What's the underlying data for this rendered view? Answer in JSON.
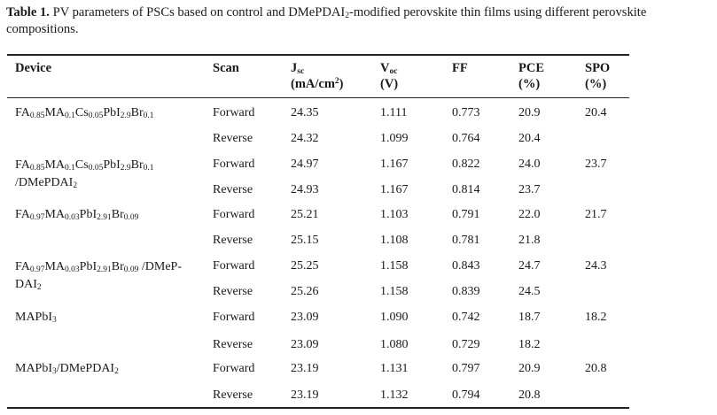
{
  "caption": {
    "label": "Table 1.",
    "line1": "PV parameters of PSCs based on control and DMePDAI",
    "line1_sub": "2",
    "line1_end": "-modified perovskite thin films using different perovskite",
    "line2": "compositions."
  },
  "headers": {
    "device": "Device",
    "scan": "Scan",
    "jsc_sym": "J",
    "jsc_sub": "sc",
    "jsc_unit": "(mA/cm",
    "jsc_unit_sup": "2",
    "jsc_unit_end": ")",
    "voc_sym": "V",
    "voc_sub": "oc",
    "voc_unit": "(V)",
    "ff": "FF",
    "pce": "PCE",
    "pce_unit": "(%)",
    "spo": "SPO",
    "spo_unit": "(%)"
  },
  "rows": [
    {
      "scan": "Forward",
      "jsc": "24.35",
      "voc": "1.111",
      "ff": "0.773",
      "pce": "20.9",
      "spo": "20.4"
    },
    {
      "scan": "Reverse",
      "jsc": "24.32",
      "voc": "1.099",
      "ff": "0.764",
      "pce": "20.4",
      "spo": ""
    },
    {
      "scan": "Forward",
      "jsc": "24.97",
      "voc": "1.167",
      "ff": "0.822",
      "pce": "24.0",
      "spo": "23.7"
    },
    {
      "scan": "Reverse",
      "jsc": "24.93",
      "voc": "1.167",
      "ff": "0.814",
      "pce": "23.7",
      "spo": ""
    },
    {
      "scan": "Forward",
      "jsc": "25.21",
      "voc": "1.103",
      "ff": "0.791",
      "pce": "22.0",
      "spo": "21.7"
    },
    {
      "scan": "Reverse",
      "jsc": "25.15",
      "voc": "1.108",
      "ff": "0.781",
      "pce": "21.8",
      "spo": ""
    },
    {
      "scan": "Forward",
      "jsc": "25.25",
      "voc": "1.158",
      "ff": "0.843",
      "pce": "24.7",
      "spo": "24.3"
    },
    {
      "scan": "Reverse",
      "jsc": "25.26",
      "voc": "1.158",
      "ff": "0.839",
      "pce": "24.5",
      "spo": ""
    },
    {
      "scan": "Forward",
      "jsc": "23.09",
      "voc": "1.090",
      "ff": "0.742",
      "pce": "18.7",
      "spo": "18.2"
    },
    {
      "scan": "Reverse",
      "jsc": "23.09",
      "voc": "1.080",
      "ff": "0.729",
      "pce": "18.2",
      "spo": ""
    },
    {
      "scan": "Forward",
      "jsc": "23.19",
      "voc": "1.131",
      "ff": "0.797",
      "pce": "20.9",
      "spo": "20.8"
    },
    {
      "scan": "Reverse",
      "jsc": "23.19",
      "voc": "1.132",
      "ff": "0.794",
      "pce": "20.8",
      "spo": ""
    }
  ],
  "devices": {
    "d1": {
      "p1": "FA",
      "s1": "0.85",
      "p2": "MA",
      "s2": "0.1",
      "p3": "Cs",
      "s3": "0.05",
      "p4": "PbI",
      "s4": "2.9",
      "p5": "Br",
      "s5": "0.1"
    },
    "d2": {
      "p1": "FA",
      "s1": "0.85",
      "p2": "MA",
      "s2": "0.1",
      "p3": "Cs",
      "s3": "0.05",
      "p4": "PbI",
      "s4": "2.9",
      "p5": "Br",
      "s5": "0.1",
      "line2": "/DMePDAI",
      "line2_sub": "2"
    },
    "d3": {
      "p1": "FA",
      "s1": "0.97",
      "p2": "MA",
      "s2": "0.03",
      "p3": "PbI",
      "s3": "2.91",
      "p4": "Br",
      "s4": "0.09"
    },
    "d4": {
      "p1": "FA",
      "s1": "0.97",
      "p2": "MA",
      "s2": "0.03",
      "p3": "PbI",
      "s3": "2.91",
      "p4": "Br",
      "s4": "0.09",
      "tail": " /DMeP-",
      "line2": "DAI",
      "line2_sub": "2"
    },
    "d5": {
      "p1": "MAPbI",
      "s1": "3"
    },
    "d6": {
      "p1": "MAPbI",
      "s1": "3",
      "p2": "/DMePDAI",
      "s2": "2"
    }
  }
}
